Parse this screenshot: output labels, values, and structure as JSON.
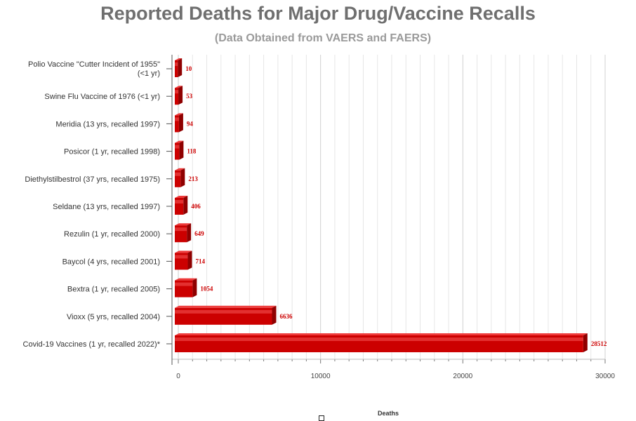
{
  "chart_data": {
    "type": "bar",
    "orientation": "horizontal",
    "title": "Reported Deaths for Major Drug/Vaccine Recalls",
    "subtitle": "(Data Obtained from VAERS and FAERS)",
    "xlabel": "Deaths",
    "ylabel": "",
    "xlim": [
      0,
      30000
    ],
    "ticks": [
      "0",
      "10000",
      "20000",
      "30000"
    ],
    "grid": true,
    "bar_color": "#cc0000",
    "label_color": "#cc0000",
    "categories": [
      [
        "Polio Vaccine \"Cutter Incident of 1955\"",
        "(<1 yr)"
      ],
      [
        "Swine Flu Vaccine of 1976 (<1 yr)"
      ],
      [
        "Meridia (13 yrs, recalled 1997)"
      ],
      [
        "Posicor (1 yr, recalled 1998)"
      ],
      [
        "Diethylstilbestrol (37 yrs, recalled 1975)"
      ],
      [
        "Seldane (13 yrs, recalled 1997)"
      ],
      [
        "Rezulin (1 yr, recalled 2000)"
      ],
      [
        "Baycol (4 yrs, recalled 2001)"
      ],
      [
        "Bextra (1 yr, recalled 2005)"
      ],
      [
        "Vioxx (5 yrs, recalled 2004)"
      ],
      [
        "Covid-19 Vaccines (1 yr, recalled 2022)*"
      ]
    ],
    "values": [
      10,
      53,
      94,
      118,
      213,
      406,
      649,
      714,
      1054,
      6636,
      28512
    ],
    "value_labels": [
      "10",
      "53",
      "94",
      "118",
      "213",
      "406",
      "649",
      "714",
      "1054",
      "6636",
      "28512"
    ]
  }
}
